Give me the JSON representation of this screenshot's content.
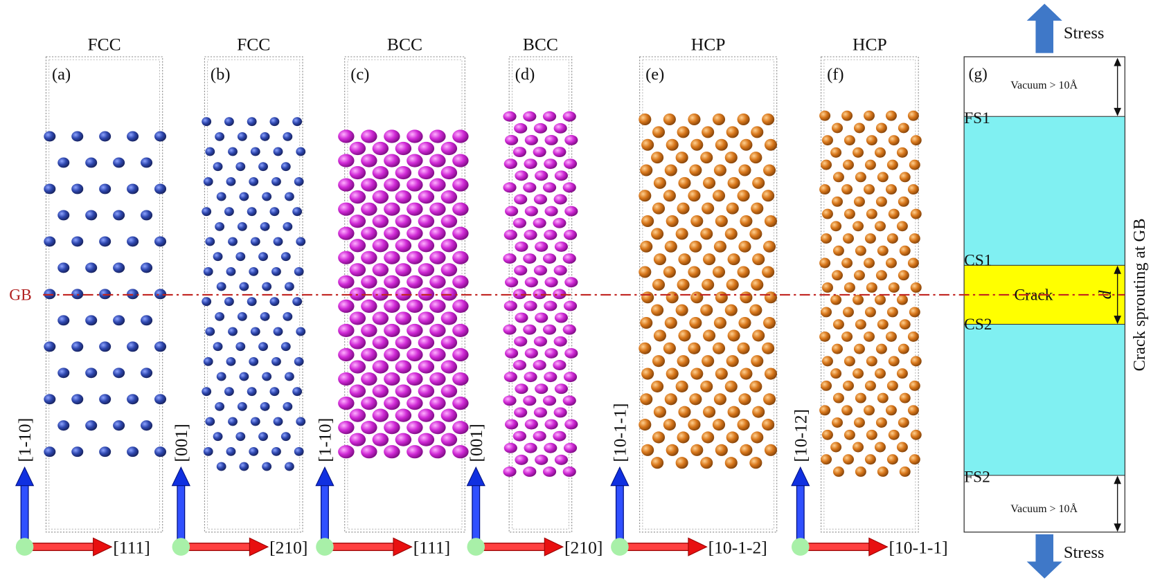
{
  "panels": [
    {
      "title": "FCC",
      "label": "(a)",
      "vertical_axis": "[1-10]",
      "horizontal_axis": "[111]"
    },
    {
      "title": "FCC",
      "label": "(b)",
      "vertical_axis": "[001]",
      "horizontal_axis": "[210]"
    },
    {
      "title": "BCC",
      "label": "(c)",
      "vertical_axis": "[1-10]",
      "horizontal_axis": "[111]"
    },
    {
      "title": "BCC",
      "label": "(d)",
      "vertical_axis": "[001]",
      "horizontal_axis": "[210]"
    },
    {
      "title": "HCP",
      "label": "(e)",
      "vertical_axis": "[10-1-1]",
      "horizontal_axis": "[10-1-2]"
    },
    {
      "title": "HCP",
      "label": "(f)",
      "vertical_axis": "[10-12]",
      "horizontal_axis": "[10-1-1]"
    }
  ],
  "gb_label": "GB",
  "schematic": {
    "label": "(g)",
    "stress_top": "Stress",
    "stress_bottom": "Stress",
    "vacuum_top": "Vacuum > 10Å",
    "vacuum_bottom": "Vacuum > 10Å",
    "fs1": "FS1",
    "cs1": "CS1",
    "crack": "Crack",
    "d": "d",
    "cs2": "CS2",
    "fs2": "FS2",
    "side_label": "Crack sprouting at GB"
  }
}
